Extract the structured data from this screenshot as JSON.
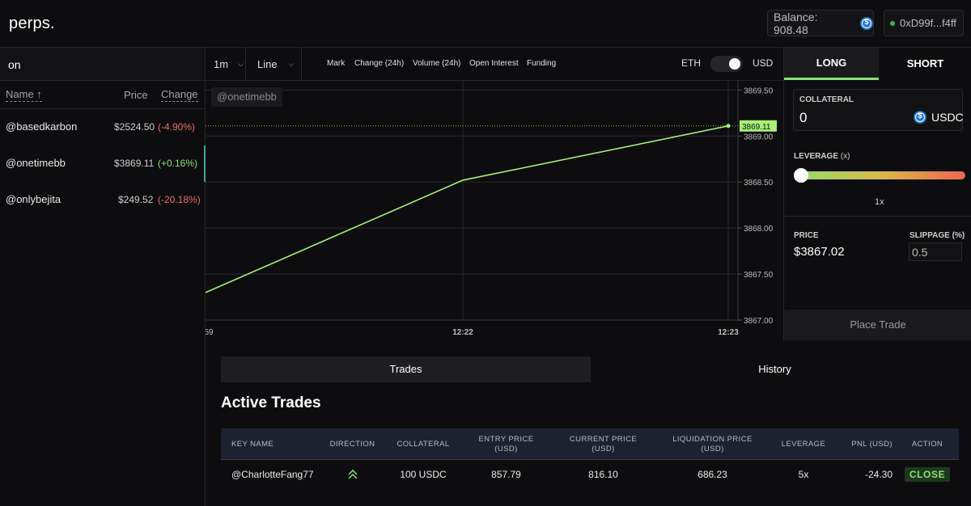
{
  "header": {
    "logo": "perps.",
    "balance_label": "Balance: 908.48",
    "wallet": "0xD99f...f4ff"
  },
  "search": {
    "value": "on",
    "placeholder": ""
  },
  "list": {
    "col_name": "Name ↑",
    "col_price": "Price",
    "col_change": "Change",
    "items": [
      {
        "name": "@basedkarbon",
        "price": "$2524.50",
        "change": "(-4.90%)",
        "dir": "neg"
      },
      {
        "name": "@onetimebb",
        "price": "$3869.11",
        "change": "(+0.16%)",
        "dir": "pos"
      },
      {
        "name": "@onlybejita",
        "price": "$249.52",
        "change": "(-20.18%)",
        "dir": "neg"
      }
    ]
  },
  "toolbar": {
    "interval": "1m",
    "chart_type": "Line",
    "metrics": [
      "Mark",
      "Change (24h)",
      "Volume (24h)",
      "Open Interest",
      "Funding"
    ],
    "toggle_left": "ETH",
    "toggle_right": "USD"
  },
  "chart_data": {
    "type": "line",
    "watermark": "@onetimebb",
    "x_ticks": [
      "59",
      "12:22",
      "12:23"
    ],
    "y_ticks": [
      "3869.50",
      "3869.00",
      "3868.50",
      "3868.00",
      "3867.50",
      "3867.00"
    ],
    "ylim": [
      3867.0,
      3869.6
    ],
    "series": [
      {
        "x": [
          "12:21",
          "12:22",
          "12:23"
        ],
        "values": [
          3867.3,
          3868.52,
          3869.11
        ]
      }
    ],
    "current_price_label": "3869.11",
    "line_color": "#a6ef7a"
  },
  "trade": {
    "tab_long": "LONG",
    "tab_short": "SHORT",
    "collateral_label": "COLLATERAL",
    "collateral_value": "0",
    "collateral_currency": "USDC",
    "leverage_label": "LEVERAGE",
    "leverage_unit": "(x)",
    "leverage_value": "1x",
    "leverage_fraction": 0,
    "price_label": "PRICE",
    "price_value": "$3867.02",
    "slippage_label": "SLIPPAGE (%)",
    "slippage_value": "0.5",
    "place_label": "Place Trade"
  },
  "bottom": {
    "tab_trades": "Trades",
    "tab_history": "History",
    "title": "Active Trades",
    "columns": [
      "KEY NAME",
      "DIRECTION",
      "COLLATERAL",
      "ENTRY PRICE (USD)",
      "CURRENT PRICE (USD)",
      "LIQUIDATION PRICE (USD)",
      "LEVERAGE",
      "PNL (USD)",
      "ACTION"
    ],
    "rows": [
      {
        "key": "@CharlotteFang77",
        "direction_icon": "double-chevron-up-icon",
        "collateral": "100 USDC",
        "entry": "857.79",
        "current": "816.10",
        "liquidation": "686.23",
        "leverage": "5x",
        "pnl": "-24.30",
        "action": "CLOSE"
      }
    ]
  }
}
